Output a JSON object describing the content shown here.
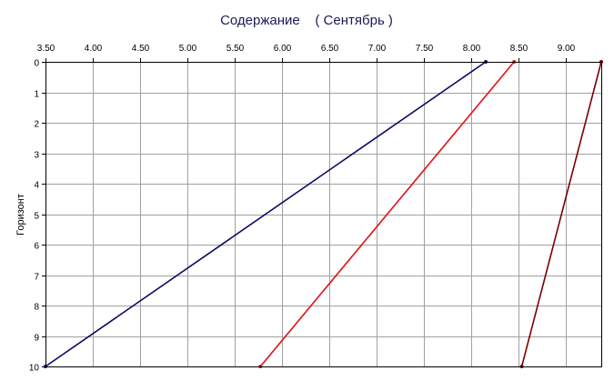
{
  "chart_data": {
    "type": "line",
    "title": "Содержание    ( Сентябрь )",
    "xlabel": "",
    "ylabel": "Горизонт",
    "x_axis_position": "top",
    "y_axis_inverted": true,
    "xlim": [
      3.5,
      9.37
    ],
    "ylim": [
      0,
      10
    ],
    "x_ticks": [
      "3.50",
      "4.00",
      "4.50",
      "5.00",
      "5.50",
      "6.00",
      "6.50",
      "7.00",
      "7.50",
      "8.00",
      "8.50",
      "9.00"
    ],
    "y_ticks": [
      "0",
      "1",
      "2",
      "3",
      "4",
      "5",
      "6",
      "7",
      "8",
      "9",
      "10"
    ],
    "grid": true,
    "colors": {
      "grid": "#a0a0a0",
      "axis": "#000000",
      "title": "#1a1a5a"
    },
    "series": [
      {
        "color": "#0a0a64",
        "points": [
          [
            8.15,
            0
          ],
          [
            3.5,
            10
          ]
        ]
      },
      {
        "color": "#e01010",
        "points": [
          [
            8.45,
            0
          ],
          [
            5.77,
            10
          ]
        ]
      },
      {
        "color": "#7a0000",
        "points": [
          [
            9.37,
            0
          ],
          [
            8.53,
            10
          ]
        ]
      }
    ]
  }
}
